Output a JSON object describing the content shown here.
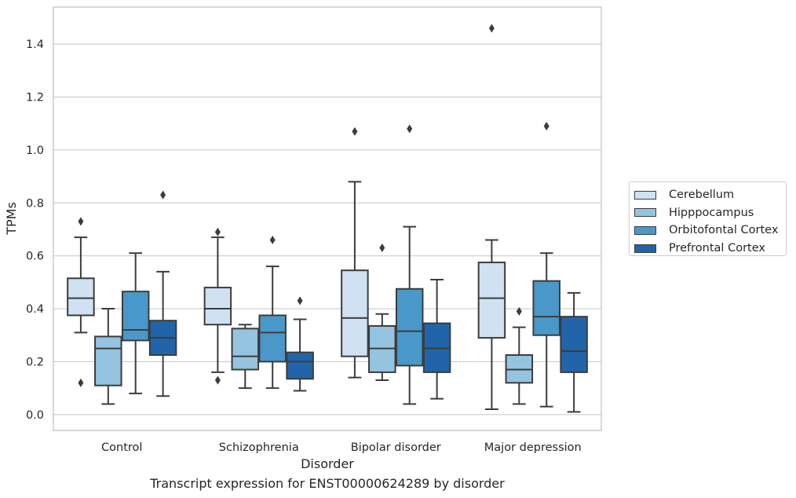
{
  "caption": "Transcript expression for ENST00000624289 by disorder",
  "chart_data": {
    "type": "box",
    "xlabel": "Disorder",
    "ylabel": "TPMs",
    "ylim": [
      -0.06,
      1.54
    ],
    "yticks": [
      0.0,
      0.2,
      0.4,
      0.6,
      0.8,
      1.0,
      1.2,
      1.4
    ],
    "ytick_labels": [
      "0.0",
      "0.2",
      "0.4",
      "0.6",
      "0.8",
      "1.0",
      "1.2",
      "1.4"
    ],
    "categories": [
      "Control",
      "Schizophrenia",
      "Bipolar disorder",
      "Major depression"
    ],
    "grid": "horizontal",
    "legend_position": "outside right",
    "series": [
      {
        "name": "Cerebellum",
        "color": "#d0e1f2",
        "boxes": [
          {
            "whislo": 0.31,
            "q1": 0.375,
            "med": 0.44,
            "q3": 0.515,
            "whishi": 0.67,
            "fliers": [
              0.73,
              0.12
            ]
          },
          {
            "whislo": 0.16,
            "q1": 0.34,
            "med": 0.4,
            "q3": 0.48,
            "whishi": 0.67,
            "fliers": [
              0.69,
              0.13
            ]
          },
          {
            "whislo": 0.14,
            "q1": 0.22,
            "med": 0.365,
            "q3": 0.545,
            "whishi": 0.88,
            "fliers": [
              1.07
            ]
          },
          {
            "whislo": 0.02,
            "q1": 0.29,
            "med": 0.44,
            "q3": 0.575,
            "whishi": 0.66,
            "fliers": [
              1.46
            ]
          }
        ]
      },
      {
        "name": "Hipppocampus",
        "color": "#94c4df",
        "boxes": [
          {
            "whislo": 0.04,
            "q1": 0.11,
            "med": 0.25,
            "q3": 0.295,
            "whishi": 0.4,
            "fliers": []
          },
          {
            "whislo": 0.1,
            "q1": 0.17,
            "med": 0.22,
            "q3": 0.325,
            "whishi": 0.34,
            "fliers": []
          },
          {
            "whislo": 0.13,
            "q1": 0.16,
            "med": 0.25,
            "q3": 0.335,
            "whishi": 0.38,
            "fliers": [
              0.63
            ]
          },
          {
            "whislo": 0.04,
            "q1": 0.12,
            "med": 0.17,
            "q3": 0.225,
            "whishi": 0.33,
            "fliers": [
              0.39
            ]
          }
        ]
      },
      {
        "name": "Orbitofontal Cortex",
        "color": "#4a98c9",
        "boxes": [
          {
            "whislo": 0.08,
            "q1": 0.28,
            "med": 0.32,
            "q3": 0.465,
            "whishi": 0.61,
            "fliers": []
          },
          {
            "whislo": 0.1,
            "q1": 0.2,
            "med": 0.31,
            "q3": 0.375,
            "whishi": 0.56,
            "fliers": [
              0.66
            ]
          },
          {
            "whislo": 0.04,
            "q1": 0.185,
            "med": 0.315,
            "q3": 0.475,
            "whishi": 0.71,
            "fliers": [
              1.08
            ]
          },
          {
            "whislo": 0.03,
            "q1": 0.3,
            "med": 0.37,
            "q3": 0.505,
            "whishi": 0.61,
            "fliers": [
              1.09
            ]
          }
        ]
      },
      {
        "name": "Prefrontal Cortex",
        "color": "#2264a9",
        "boxes": [
          {
            "whislo": 0.07,
            "q1": 0.225,
            "med": 0.29,
            "q3": 0.355,
            "whishi": 0.54,
            "fliers": [
              0.83
            ]
          },
          {
            "whislo": 0.09,
            "q1": 0.135,
            "med": 0.2,
            "q3": 0.235,
            "whishi": 0.36,
            "fliers": [
              0.43
            ]
          },
          {
            "whislo": 0.06,
            "q1": 0.16,
            "med": 0.25,
            "q3": 0.345,
            "whishi": 0.51,
            "fliers": []
          },
          {
            "whislo": 0.01,
            "q1": 0.16,
            "med": 0.24,
            "q3": 0.37,
            "whishi": 0.46,
            "fliers": []
          }
        ]
      }
    ]
  }
}
